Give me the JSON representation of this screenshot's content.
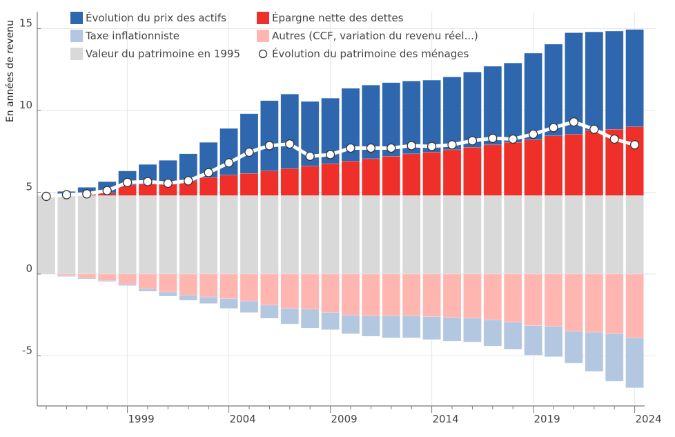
{
  "chart_data": {
    "type": "bar",
    "stacked": true,
    "title": "",
    "xlabel": "",
    "ylabel": "En années de revenu",
    "ylim": [
      -8.05,
      16.0
    ],
    "yticks": [
      -5,
      0,
      5,
      10,
      15
    ],
    "ytick_labels": [
      "-5",
      "0",
      "5",
      "10",
      "15"
    ],
    "xticks": [
      1999,
      2004,
      2009,
      2014,
      2019,
      2024
    ],
    "xtick_labels": [
      "1999",
      "2004",
      "2009",
      "2014",
      "2019",
      "2024"
    ],
    "grid": true,
    "legend_placement": "top-left",
    "categories": [
      1995,
      1996,
      1997,
      1998,
      1999,
      2000,
      2001,
      2002,
      2003,
      2004,
      2005,
      2006,
      2007,
      2008,
      2009,
      2010,
      2011,
      2012,
      2013,
      2014,
      2015,
      2016,
      2017,
      2018,
      2019,
      2020,
      2021,
      2022,
      2023,
      2024
    ],
    "series": [
      {
        "name": "Valeur du patrimoine en 1995",
        "color": "#d9d9d9",
        "kind": "bar",
        "values": [
          4.8,
          4.8,
          4.8,
          4.8,
          4.8,
          4.8,
          4.8,
          4.8,
          4.8,
          4.8,
          4.8,
          4.8,
          4.8,
          4.8,
          4.8,
          4.8,
          4.8,
          4.8,
          4.8,
          4.8,
          4.8,
          4.8,
          4.8,
          4.8,
          4.8,
          4.8,
          4.8,
          4.8,
          4.8,
          4.8
        ]
      },
      {
        "name": "Épargne nette des dettes",
        "color": "#ee2f2a",
        "kind": "bar",
        "values": [
          0.0,
          0.05,
          0.1,
          0.15,
          0.65,
          0.7,
          0.75,
          0.9,
          1.1,
          1.25,
          1.35,
          1.5,
          1.65,
          1.8,
          1.95,
          2.1,
          2.25,
          2.4,
          2.55,
          2.65,
          2.8,
          2.95,
          3.1,
          3.25,
          3.4,
          3.65,
          3.75,
          3.95,
          4.05,
          4.2
        ]
      },
      {
        "name": "Évolution du prix des actifs",
        "color": "#2e67ad",
        "kind": "bar",
        "values": [
          0.0,
          0.2,
          0.4,
          0.7,
          0.85,
          1.2,
          1.4,
          1.65,
          2.15,
          2.85,
          3.65,
          4.3,
          4.55,
          3.95,
          4.0,
          4.45,
          4.5,
          4.5,
          4.45,
          4.4,
          4.45,
          4.6,
          4.8,
          4.85,
          5.3,
          5.6,
          6.2,
          6.05,
          6.0,
          5.95
        ]
      },
      {
        "name": "Autres (CCF, variation du revenu réel...)",
        "color": "#ffb6b1",
        "kind": "bar",
        "values": [
          0.0,
          -0.1,
          -0.25,
          -0.4,
          -0.6,
          -0.9,
          -1.1,
          -1.3,
          -1.4,
          -1.5,
          -1.65,
          -1.9,
          -2.1,
          -2.15,
          -2.35,
          -2.5,
          -2.55,
          -2.55,
          -2.55,
          -2.6,
          -2.65,
          -2.7,
          -2.8,
          -2.95,
          -3.15,
          -3.2,
          -3.5,
          -3.55,
          -3.65,
          -3.9
        ]
      },
      {
        "name": "Taxe inflationniste",
        "color": "#b3c7e0",
        "kind": "bar",
        "values": [
          0.0,
          -0.05,
          -0.05,
          -0.05,
          -0.1,
          -0.15,
          -0.25,
          -0.3,
          -0.4,
          -0.6,
          -0.7,
          -0.8,
          -0.95,
          -1.15,
          -1.05,
          -1.15,
          -1.25,
          -1.35,
          -1.35,
          -1.4,
          -1.45,
          -1.45,
          -1.6,
          -1.65,
          -1.8,
          -1.85,
          -1.95,
          -2.4,
          -2.9,
          -3.05
        ]
      },
      {
        "name": "Évolution du patrimoine des ménages",
        "color": "#ffffff",
        "kind": "line",
        "values": [
          4.75,
          4.85,
          4.9,
          5.1,
          5.6,
          5.65,
          5.55,
          5.7,
          6.2,
          6.8,
          7.45,
          7.85,
          7.95,
          7.2,
          7.3,
          7.7,
          7.7,
          7.7,
          7.85,
          7.8,
          7.9,
          8.15,
          8.3,
          8.25,
          8.55,
          8.95,
          9.3,
          8.85,
          8.25,
          7.9
        ]
      }
    ],
    "legend": [
      {
        "label": "Évolution du prix des actifs",
        "symbol": "square",
        "color": "#2e67ad"
      },
      {
        "label": "Taxe inflationniste",
        "symbol": "square",
        "color": "#b3c7e0"
      },
      {
        "label": "Valeur du patrimoine en 1995",
        "symbol": "square",
        "color": "#d9d9d9"
      },
      {
        "label": "Épargne nette des dettes",
        "symbol": "square",
        "color": "#ee2f2a"
      },
      {
        "label": "Autres (CCF, variation du revenu réel...)",
        "symbol": "square",
        "color": "#ffb6b1"
      },
      {
        "label": "Évolution du patrimoine des ménages",
        "symbol": "circle",
        "color": "#ffffff"
      }
    ]
  }
}
